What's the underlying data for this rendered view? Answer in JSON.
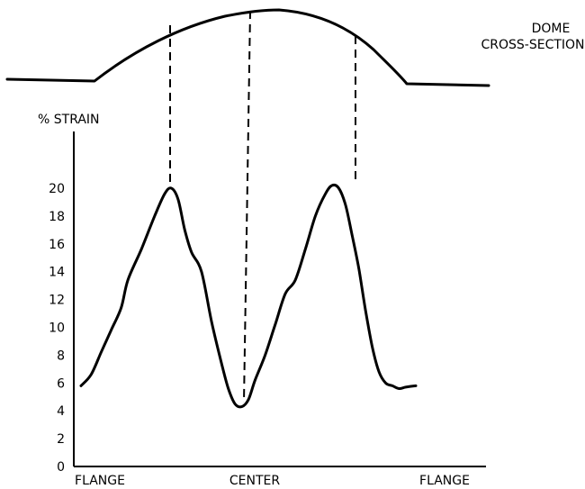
{
  "dome_label_line1": "DOME",
  "dome_label_line2": "CROSS-SECTION",
  "chart_data": {
    "type": "line",
    "ylabel": "% STRAIN",
    "ylim": [
      0,
      20
    ],
    "yticks": [
      "0",
      "2",
      "4",
      "6",
      "8",
      "10",
      "12",
      "14",
      "16",
      "18",
      "20"
    ],
    "xtick_labels": [
      "FLANGE",
      "CENTER",
      "FLANGE"
    ],
    "grid": false,
    "series": [
      {
        "x": [
          0.0,
          0.03,
          0.06,
          0.09,
          0.12,
          0.14,
          0.18,
          0.22,
          0.25,
          0.27,
          0.29,
          0.31,
          0.33,
          0.36,
          0.39,
          0.42,
          0.44,
          0.46,
          0.48,
          0.5,
          0.52,
          0.55,
          0.58,
          0.61,
          0.64,
          0.67,
          0.7,
          0.73,
          0.75,
          0.77,
          0.79,
          0.81,
          0.83,
          0.85,
          0.87,
          0.89,
          0.91,
          0.93,
          0.95,
          0.97,
          1.0
        ],
        "y": [
          5.8,
          6.6,
          8.2,
          9.8,
          11.4,
          13.4,
          15.6,
          18.0,
          19.6,
          20.0,
          19.2,
          17.0,
          15.4,
          14.0,
          10.4,
          7.4,
          5.6,
          4.5,
          4.3,
          4.8,
          6.2,
          8.0,
          10.2,
          12.4,
          13.4,
          15.6,
          18.0,
          19.6,
          20.2,
          20.0,
          18.8,
          16.6,
          14.2,
          11.2,
          8.6,
          6.8,
          6.0,
          5.8,
          5.6,
          5.7,
          5.8
        ]
      }
    ]
  }
}
